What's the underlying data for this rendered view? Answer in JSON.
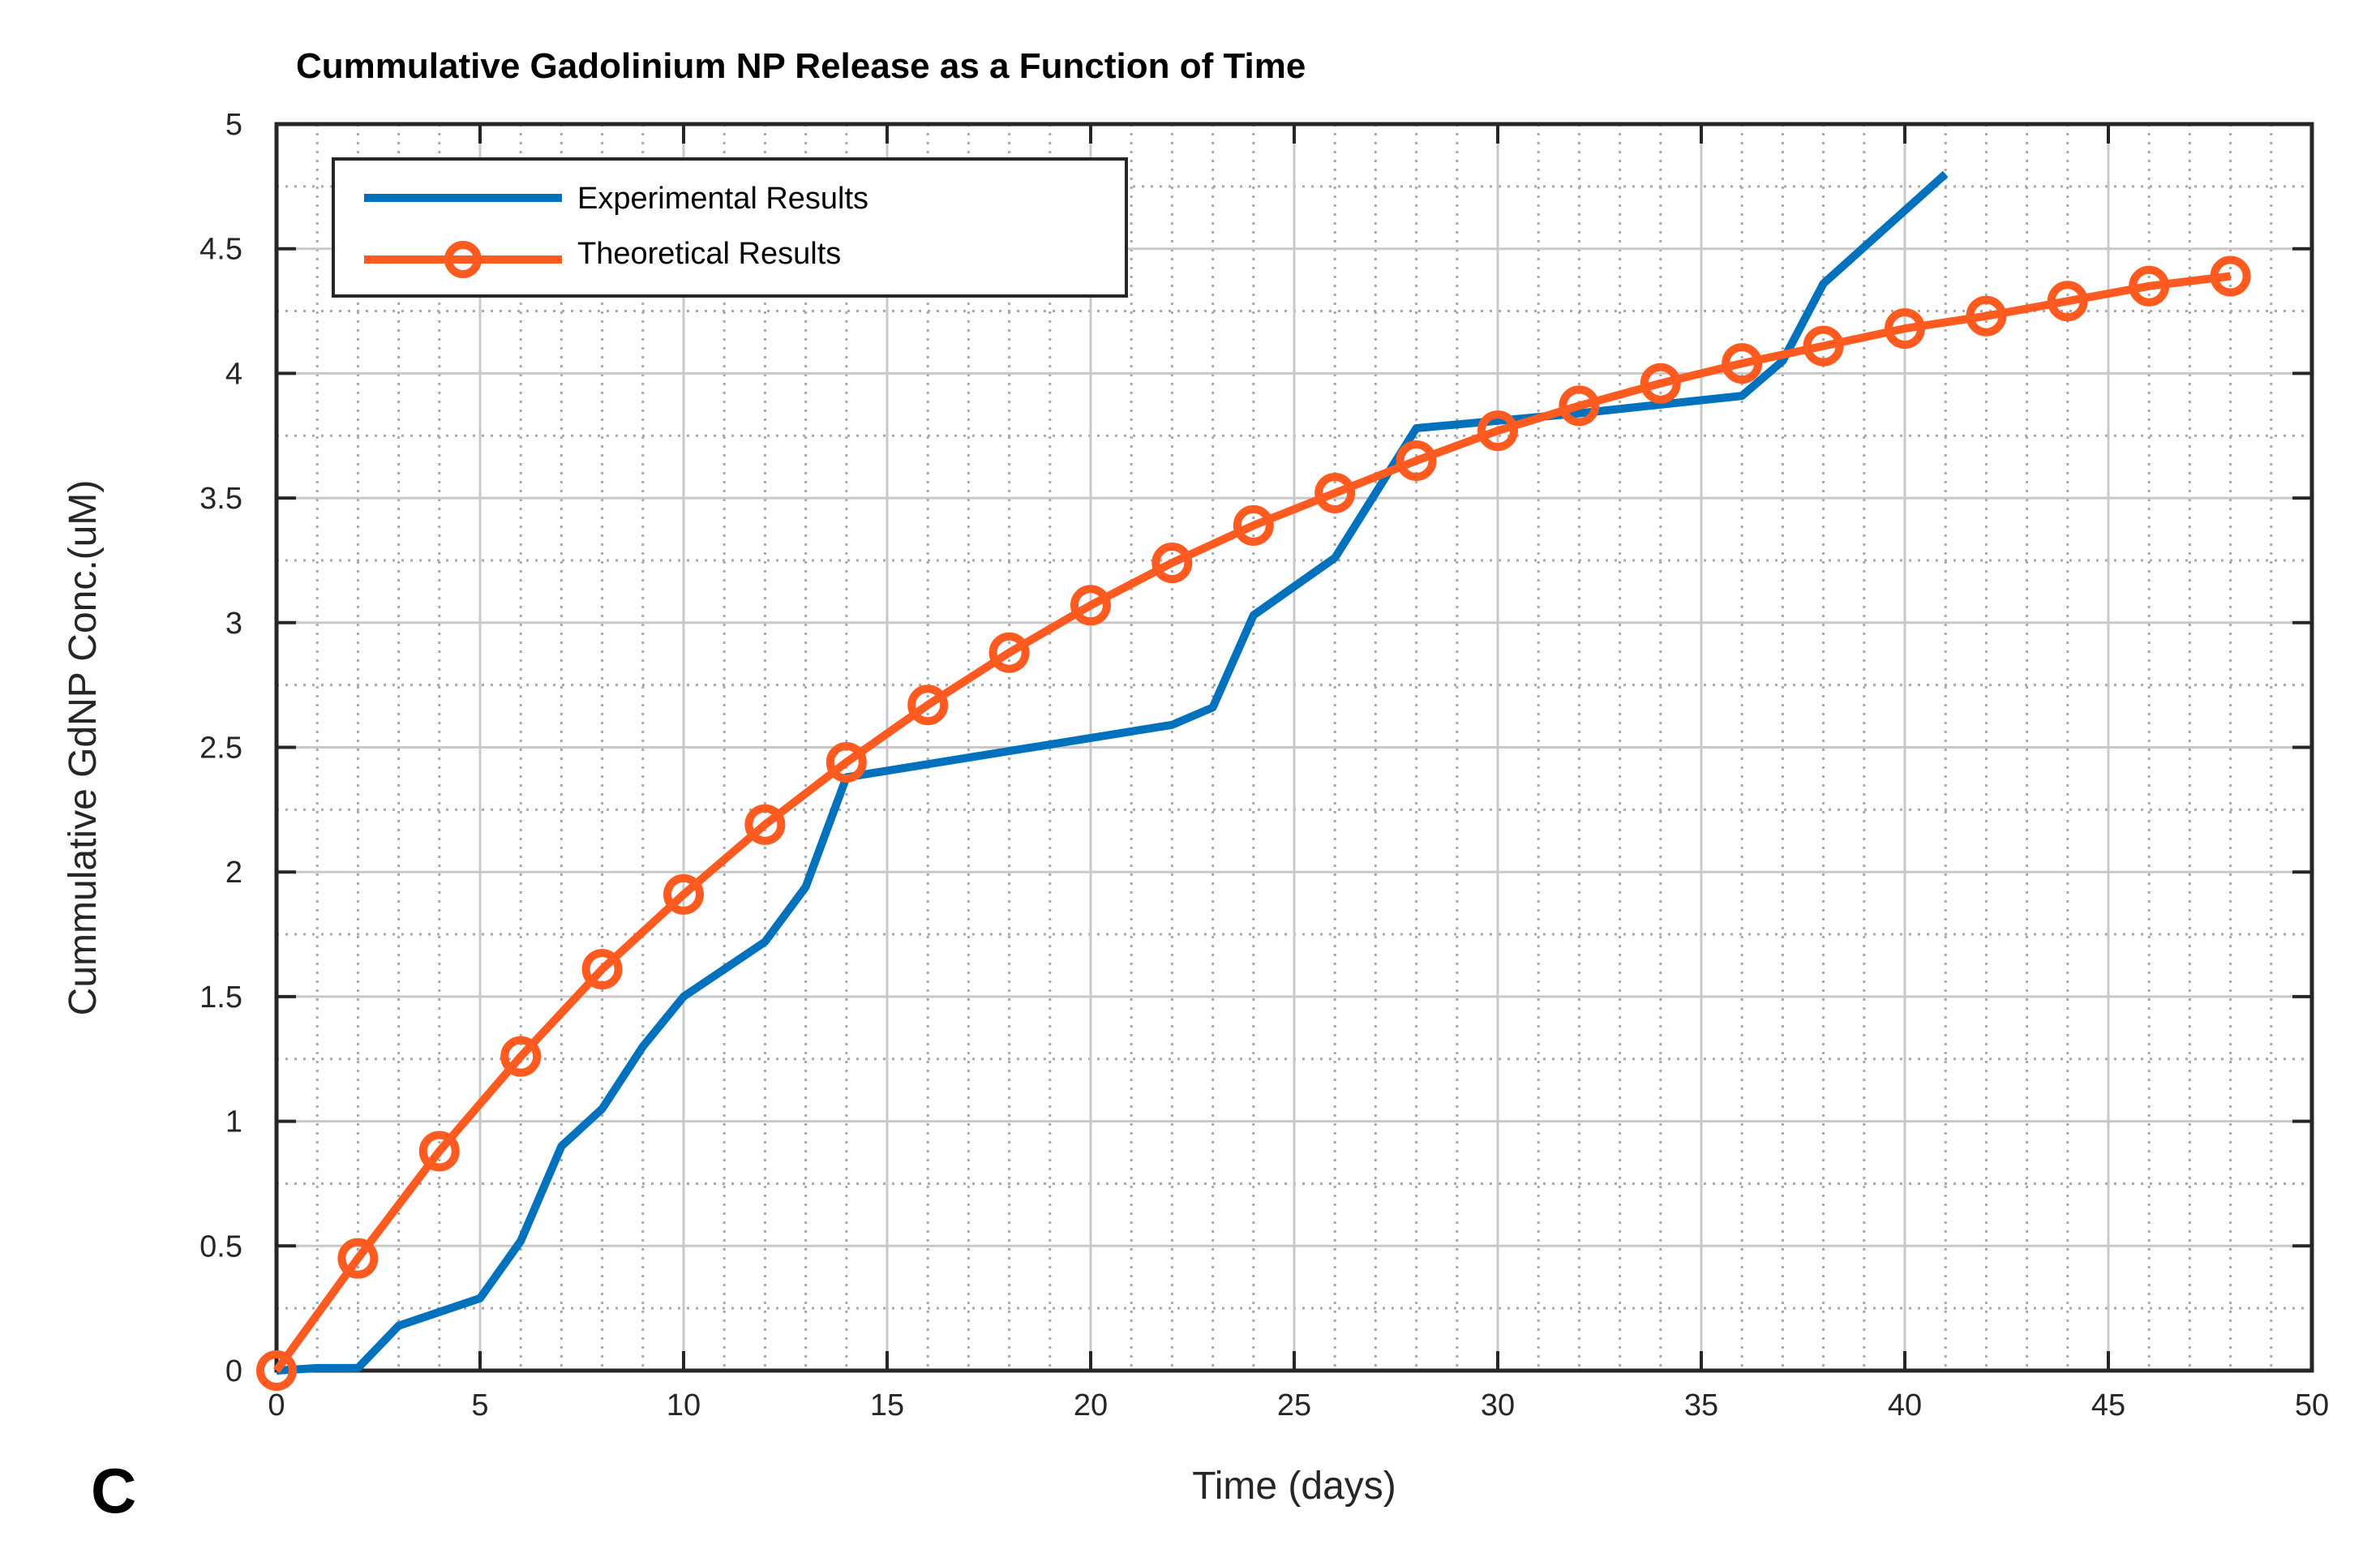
{
  "chart_data": {
    "type": "line",
    "title": "Cummulative Gadolinium NP Release as a Function of Time",
    "xlabel": "Time (days)",
    "ylabel": "Cummulative GdNP Conc.(uM)",
    "panel_label": "C",
    "xlim": [
      0,
      50
    ],
    "ylim": [
      0,
      5
    ],
    "xticks": [
      "0",
      "5",
      "10",
      "15",
      "20",
      "25",
      "30",
      "35",
      "40",
      "45",
      "50"
    ],
    "yticks": [
      "0",
      "0.5",
      "1",
      "1.5",
      "2",
      "2.5",
      "3",
      "3.5",
      "4",
      "4.5",
      "5"
    ],
    "grid": true,
    "legend_position": "top-left",
    "series": [
      {
        "name": "Experimental Results",
        "color": "#0072BD",
        "marker": "none",
        "x": [
          0,
          1,
          2,
          3,
          5,
          6,
          7,
          8,
          9,
          10,
          12,
          13,
          14,
          22,
          23,
          24,
          26,
          28,
          30,
          32,
          36,
          37,
          38,
          41
        ],
        "y": [
          0,
          0.01,
          0.01,
          0.18,
          0.29,
          0.52,
          0.9,
          1.05,
          1.3,
          1.5,
          1.72,
          1.94,
          2.38,
          2.59,
          2.66,
          3.03,
          3.26,
          3.78,
          3.81,
          3.84,
          3.91,
          4.05,
          4.36,
          4.8
        ]
      },
      {
        "name": "Theoretical Results",
        "color": "#FF5A1F",
        "marker": "circle",
        "x": [
          0,
          2,
          4,
          6,
          8,
          10,
          12,
          14,
          16,
          18,
          20,
          22,
          24,
          26,
          28,
          30,
          32,
          34,
          36,
          38,
          40,
          42,
          44,
          46,
          48
        ],
        "y": [
          0,
          0.45,
          0.88,
          1.26,
          1.61,
          1.91,
          2.19,
          2.44,
          2.67,
          2.88,
          3.07,
          3.24,
          3.39,
          3.52,
          3.65,
          3.77,
          3.87,
          3.96,
          4.04,
          4.11,
          4.18,
          4.23,
          4.29,
          4.35,
          4.39
        ]
      }
    ]
  },
  "colors": {
    "axis": "#262626",
    "major_grid": "#c8c8c8",
    "minor_grid": "#a8a8a8",
    "background": "#ffffff"
  }
}
